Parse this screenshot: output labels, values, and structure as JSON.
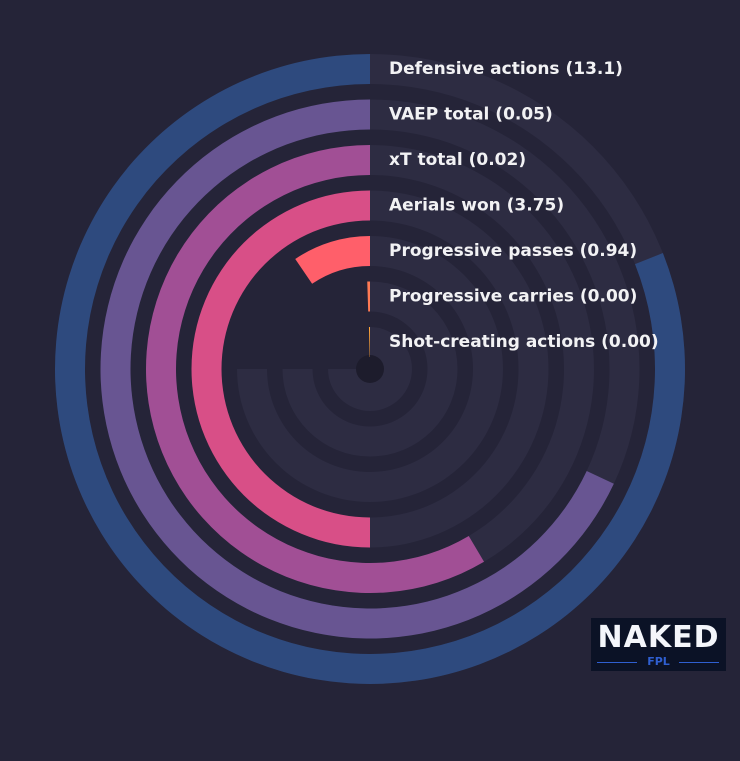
{
  "chart_data": {
    "type": "radial-bar",
    "series": [
      {
        "label": "Defensive actions (13.1)",
        "value": 13.1,
        "fraction": 0.81,
        "color": "#2e4a7e"
      },
      {
        "label": "VAEP total (0.05)",
        "value": 0.05,
        "fraction": 0.68,
        "color": "#685592"
      },
      {
        "label": "xT total (0.02)",
        "value": 0.02,
        "fraction": 0.585,
        "color": "#a14f95"
      },
      {
        "label": "Aerials won (3.75)",
        "value": 3.75,
        "fraction": 0.5,
        "color": "#d84f87"
      },
      {
        "label": "Progressive passes (0.94)",
        "value": 0.94,
        "fraction": 0.095,
        "color": "#ff5f6a"
      },
      {
        "label": "Progressive carries (0.00)",
        "value": 0.0,
        "fraction": 0.005,
        "color": "#ff7a54"
      },
      {
        "label": "Shot-creating actions (0.00)",
        "value": 0.0,
        "fraction": 0.004,
        "color": "#ffa43a"
      }
    ],
    "track_color": "#2d2c42",
    "background": "#252438"
  },
  "logo": {
    "wordmark": "NAKED",
    "sub": "FPL"
  }
}
